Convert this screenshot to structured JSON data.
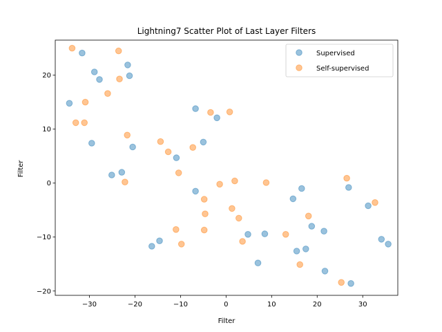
{
  "chart_data": {
    "type": "scatter",
    "title": "Lightning7 Scatter Plot of Last Layer Filters",
    "xlabel": "Filter",
    "ylabel": "Filter",
    "xlim": [
      -37.5,
      37.7
    ],
    "ylim": [
      -20.8,
      26.5
    ],
    "xticks": [
      -30,
      -20,
      -10,
      0,
      10,
      20,
      30
    ],
    "yticks": [
      -20,
      -10,
      0,
      10,
      20
    ],
    "grid": false,
    "legend": "top-right",
    "series": [
      {
        "name": "Supervised",
        "color": "#1f77b4",
        "points": [
          [
            -31.6,
            24.1
          ],
          [
            -28.9,
            20.6
          ],
          [
            -27.8,
            19.2
          ],
          [
            -21.6,
            21.9
          ],
          [
            -21.2,
            19.9
          ],
          [
            -34.4,
            14.8
          ],
          [
            -29.5,
            7.4
          ],
          [
            -20.5,
            6.7
          ],
          [
            -25.1,
            1.5
          ],
          [
            -22.9,
            2.0
          ],
          [
            -6.7,
            13.8
          ],
          [
            -2.0,
            12.1
          ],
          [
            -5.0,
            7.6
          ],
          [
            -10.9,
            4.7
          ],
          [
            -6.7,
            -1.5
          ],
          [
            -16.3,
            -11.7
          ],
          [
            -14.6,
            -10.7
          ],
          [
            4.8,
            -9.5
          ],
          [
            8.5,
            -9.4
          ],
          [
            7.0,
            -14.8
          ],
          [
            16.6,
            -1.0
          ],
          [
            14.7,
            -2.9
          ],
          [
            18.8,
            -8.0
          ],
          [
            21.5,
            -8.9
          ],
          [
            15.5,
            -12.6
          ],
          [
            17.5,
            -12.2
          ],
          [
            21.7,
            -16.3
          ],
          [
            26.9,
            -0.8
          ],
          [
            27.4,
            -18.6
          ],
          [
            31.2,
            -4.2
          ],
          [
            34.1,
            -10.4
          ],
          [
            35.6,
            -11.3
          ]
        ]
      },
      {
        "name": "Self-supervised",
        "color": "#ff7f0e",
        "points": [
          [
            -33.8,
            25.0
          ],
          [
            -23.6,
            24.5
          ],
          [
            -23.4,
            19.3
          ],
          [
            -26.0,
            16.6
          ],
          [
            -30.9,
            15.0
          ],
          [
            -33.0,
            11.2
          ],
          [
            -31.1,
            11.2
          ],
          [
            -21.7,
            8.9
          ],
          [
            -22.2,
            0.2
          ],
          [
            -14.4,
            7.7
          ],
          [
            -12.7,
            5.8
          ],
          [
            -7.3,
            6.6
          ],
          [
            -10.4,
            1.9
          ],
          [
            -3.4,
            13.1
          ],
          [
            0.8,
            13.2
          ],
          [
            -11.0,
            -8.6
          ],
          [
            -9.8,
            -11.3
          ],
          [
            -4.8,
            -3.0
          ],
          [
            -4.6,
            -5.7
          ],
          [
            -4.8,
            -8.7
          ],
          [
            -1.4,
            -0.2
          ],
          [
            1.9,
            0.4
          ],
          [
            1.3,
            -4.7
          ],
          [
            2.8,
            -6.5
          ],
          [
            3.6,
            -10.8
          ],
          [
            8.8,
            0.1
          ],
          [
            13.1,
            -9.5
          ],
          [
            18.1,
            -6.1
          ],
          [
            16.2,
            -15.1
          ],
          [
            25.3,
            -18.4
          ],
          [
            26.5,
            0.9
          ],
          [
            32.7,
            -3.6
          ]
        ]
      }
    ]
  }
}
